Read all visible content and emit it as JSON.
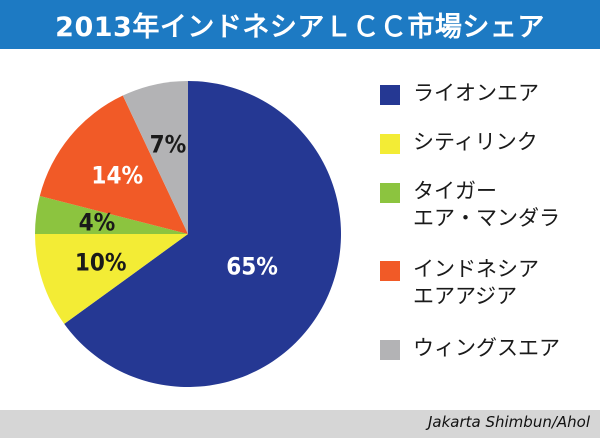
{
  "header": {
    "title": "2013年インドネシアＬＣＣ市場シェア"
  },
  "chart_data": {
    "type": "pie",
    "title": "2013年インドネシアＬＣＣ市場シェア",
    "slices": [
      {
        "name": "ライオンエア",
        "value": 65,
        "label": "65%",
        "color": "#253893",
        "label_color": "#ffffff"
      },
      {
        "name": "シティリンク",
        "value": 10,
        "label": "10%",
        "color": "#f3ec35",
        "label_color": "#1a1a1a"
      },
      {
        "name": "タイガー\nエア・マンダラ",
        "value": 4,
        "label": "4%",
        "color": "#8cc43f",
        "label_color": "#1a1a1a"
      },
      {
        "name": "インドネシア\nエアアジア",
        "value": 14,
        "label": "14%",
        "color": "#f15a27",
        "label_color": "#ffffff"
      },
      {
        "name": "ウィングスエア",
        "value": 7,
        "label": "7%",
        "color": "#b3b3b5",
        "label_color": "#1a1a1a"
      }
    ],
    "start_angle_deg": 0,
    "direction": "clockwise",
    "legend_position": "right"
  },
  "source": {
    "text": "Jakarta Shimbun/Ahol"
  }
}
